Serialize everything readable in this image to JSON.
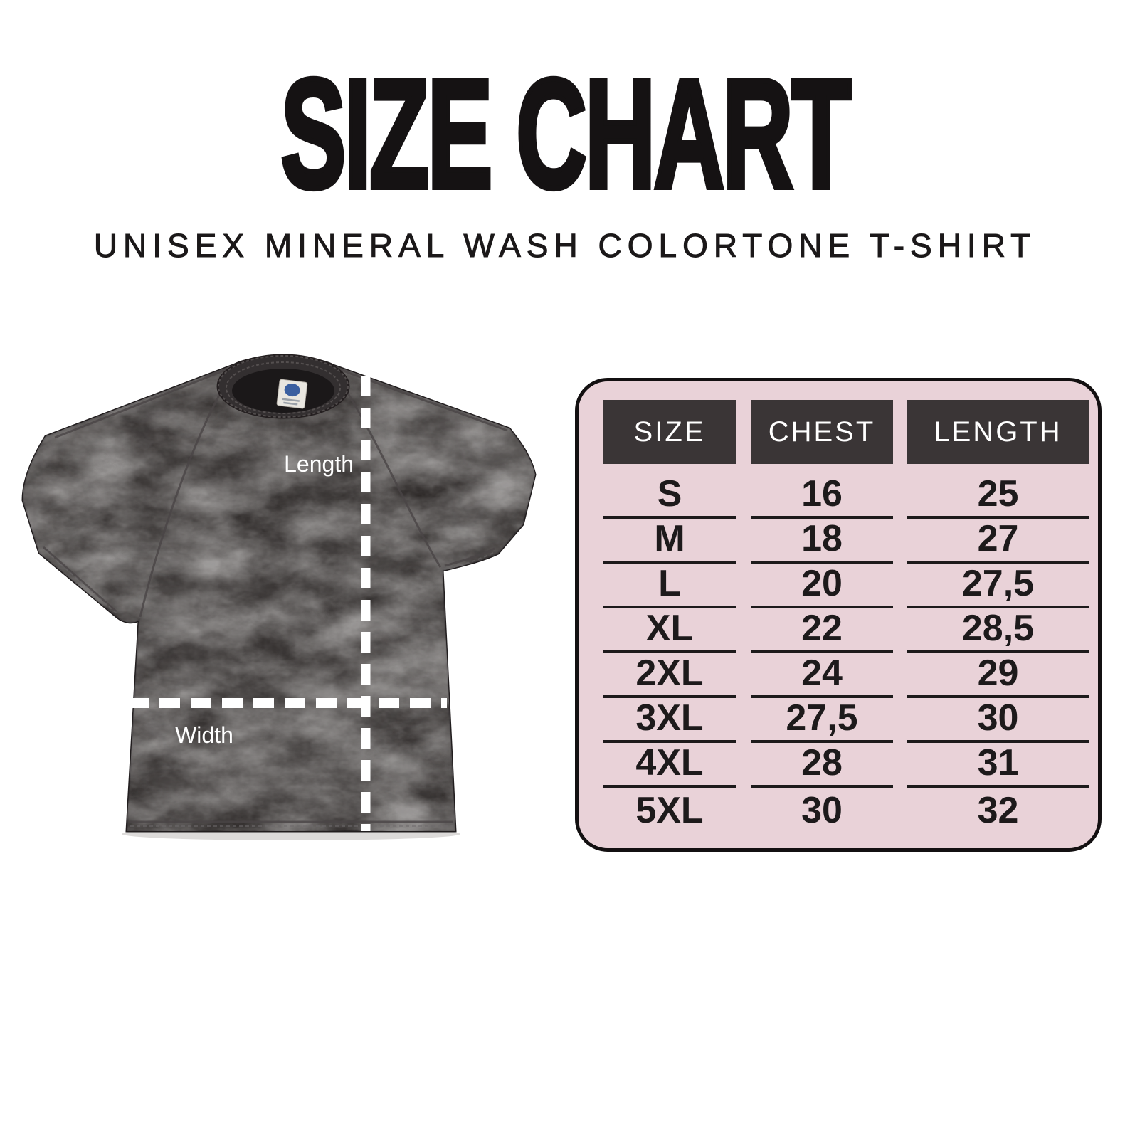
{
  "title": "SIZE CHART",
  "subtitle": "UNISEX MINERAL WASH COLORTONE T-SHIRT",
  "shirt_diagram": {
    "length_label": "Length",
    "width_label": "Width",
    "shirt_color": "#2d2928",
    "dash_color": "#ffffff"
  },
  "size_table": {
    "columns": [
      "SIZE",
      "CHEST",
      "LENGTH"
    ],
    "rows": [
      {
        "size": "S",
        "chest": "16",
        "length": "25"
      },
      {
        "size": "M",
        "chest": "18",
        "length": "27"
      },
      {
        "size": "L",
        "chest": "20",
        "length": "27,5"
      },
      {
        "size": "XL",
        "chest": "22",
        "length": "28,5"
      },
      {
        "size": "2XL",
        "chest": "24",
        "length": "29"
      },
      {
        "size": "3XL",
        "chest": "27,5",
        "length": "30"
      },
      {
        "size": "4XL",
        "chest": "28",
        "length": "31"
      },
      {
        "size": "5XL",
        "chest": "30",
        "length": "32"
      }
    ],
    "colors": {
      "panel_bg": "#e9d2d8",
      "header_bg": "#3a3536",
      "header_text": "#ffffff",
      "row_text": "#1d1a1b",
      "border": "#131011"
    }
  },
  "chart_data": {
    "type": "table",
    "title": "SIZE CHART",
    "subtitle": "UNISEX MINERAL WASH COLORTONE T-SHIRT",
    "columns": [
      "SIZE",
      "CHEST",
      "LENGTH"
    ],
    "rows": [
      [
        "S",
        "16",
        "25"
      ],
      [
        "M",
        "18",
        "27"
      ],
      [
        "L",
        "20",
        "27,5"
      ],
      [
        "XL",
        "22",
        "28,5"
      ],
      [
        "2XL",
        "24",
        "29"
      ],
      [
        "3XL",
        "27,5",
        "30"
      ],
      [
        "4XL",
        "28",
        "31"
      ],
      [
        "5XL",
        "30",
        "32"
      ]
    ],
    "units_note": "",
    "legend_position": "none",
    "grid": false
  }
}
